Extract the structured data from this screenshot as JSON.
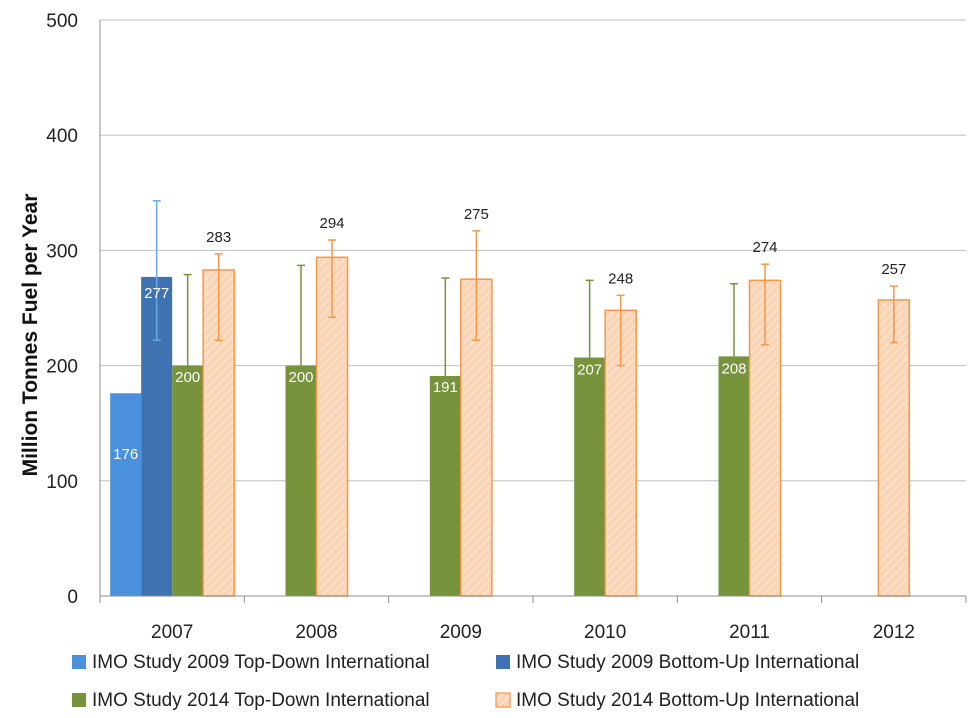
{
  "chart_data": {
    "type": "bar",
    "title": "",
    "xlabel": "",
    "ylabel": "Million Tonnes Fuel per Year",
    "ylim": [
      0,
      500
    ],
    "yticks": [
      0,
      100,
      200,
      300,
      400,
      500
    ],
    "grid": true,
    "legend_position": "bottom",
    "categories": [
      "2007",
      "2008",
      "2009",
      "2010",
      "2011",
      "2012"
    ],
    "series": [
      {
        "name": "IMO Study 2009 Top-Down International",
        "color": "#4a90dd",
        "values": [
          176,
          null,
          null,
          null,
          null,
          null
        ],
        "labels": [
          "176",
          "",
          "",
          "",
          "",
          ""
        ],
        "error_low": [
          null,
          null,
          null,
          null,
          null,
          null
        ],
        "error_high": [
          null,
          null,
          null,
          null,
          null,
          null
        ]
      },
      {
        "name": "IMO Study 2009 Bottom-Up International",
        "color": "#3f72b0",
        "values": [
          277,
          null,
          null,
          null,
          null,
          null
        ],
        "labels": [
          "277",
          "",
          "",
          "",
          "",
          ""
        ],
        "error_low": [
          222,
          null,
          null,
          null,
          null,
          null
        ],
        "error_high": [
          343,
          null,
          null,
          null,
          null,
          null
        ]
      },
      {
        "name": "IMO Study 2014 Top-Down International",
        "color": "#77933c",
        "values": [
          200,
          200,
          191,
          207,
          208,
          null
        ],
        "labels": [
          "200",
          "200",
          "191",
          "207",
          "208",
          ""
        ],
        "error_low": [
          null,
          null,
          null,
          null,
          null,
          null
        ],
        "error_high": [
          279,
          287,
          276,
          274,
          271,
          null
        ]
      },
      {
        "name": "IMO Study 2014 Bottom-Up International",
        "color": "#fbd5b5",
        "edge_color": "#f79646",
        "values": [
          283,
          294,
          275,
          248,
          274,
          257
        ],
        "labels": [
          "283",
          "294",
          "275",
          "248",
          "274",
          "257"
        ],
        "error_low": [
          222,
          242,
          222,
          200,
          218,
          220
        ],
        "error_high": [
          297,
          309,
          317,
          261,
          288,
          269
        ]
      }
    ]
  }
}
